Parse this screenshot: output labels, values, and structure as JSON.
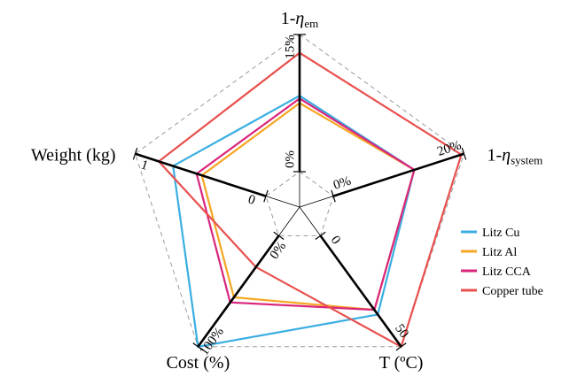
{
  "chart_data": {
    "type": "radar",
    "grid": "dashed-pentagons",
    "legend_position": "right",
    "axes": [
      {
        "key": "eta_em",
        "label_main": "1-",
        "label_symbol": "η",
        "label_sub": "em",
        "min_label": "0%",
        "max_label": "15%",
        "min": 0,
        "max": 15
      },
      {
        "key": "eta_system",
        "label_main": "1-",
        "label_symbol": "η",
        "label_sub": "system",
        "min_label": "0%",
        "max_label": "20%",
        "min": 0,
        "max": 20
      },
      {
        "key": "temp",
        "label_main": "T (ºC)",
        "label_symbol": "",
        "label_sub": "",
        "min_label": "0",
        "max_label": "50",
        "min": 0,
        "max": 50
      },
      {
        "key": "cost",
        "label_main": "Cost (%)",
        "label_symbol": "",
        "label_sub": "",
        "min_label": "0%",
        "max_label": "100%",
        "min": 0,
        "max": 100
      },
      {
        "key": "weight",
        "label_main": "Weight (kg)",
        "label_symbol": "",
        "label_sub": "",
        "min_label": "0",
        "max_label": "1",
        "min": 0,
        "max": 1
      }
    ],
    "series": [
      {
        "name": "Litz Cu",
        "color": "#3aaee2",
        "values": [
          8.3,
          12.4,
          35.5,
          100,
          0.71
        ]
      },
      {
        "name": "Litz Al",
        "color": "#f5a623",
        "values": [
          7.5,
          12.4,
          33.4,
          55.5,
          0.49
        ]
      },
      {
        "name": "Litz CCA",
        "color": "#d9267d",
        "values": [
          8.0,
          12.4,
          33.4,
          60.1,
          0.53
        ]
      },
      {
        "name": "Copper tube",
        "color": "#e8504e",
        "values": [
          13.0,
          19.6,
          50,
          28.3,
          0.82
        ]
      }
    ]
  }
}
